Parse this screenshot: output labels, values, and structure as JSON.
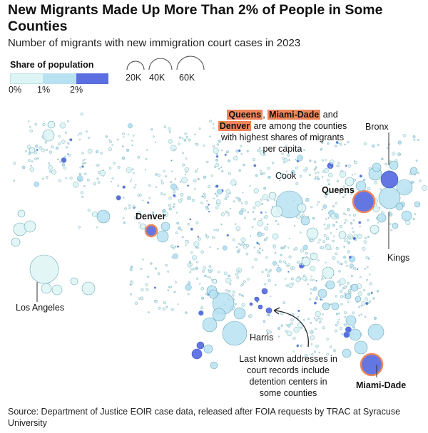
{
  "header": {
    "title": "New Migrants Made Up More Than 2% of People in Some Counties",
    "subtitle": "Number of migrants with new immigration court cases in 2023"
  },
  "legend": {
    "color_title": "Share of population",
    "color_ticks": [
      "0%",
      "1%",
      "2%"
    ],
    "size_ticks": [
      "20K",
      "40K",
      "60K"
    ],
    "colors": [
      "#def5f5",
      "#b8e2f2",
      "#7fbde8",
      "#5b6fe0"
    ]
  },
  "annotations": {
    "highlight_names": [
      "Queens",
      "Miami-Dade",
      "Denver"
    ],
    "highlight_line1_end": "and",
    "highlight_line2_end": "are among the counties",
    "highlight_line3": "with highest shares of migrants",
    "highlight_line4": "per capita",
    "detention_lines": [
      "Last known addresses in",
      "court records include",
      "detention centers in",
      "some counties"
    ]
  },
  "chart_data": {
    "type": "bubble-map",
    "title": "New Migrants Made Up More Than 2% of People in Some Counties",
    "subtitle": "Number of migrants with new immigration court cases in 2023",
    "size_legend": [
      20000,
      40000,
      60000
    ],
    "color_legend_share": [
      0,
      0.01,
      0.02
    ],
    "labeled_counties": [
      {
        "name": "Los Angeles",
        "share_band": "0-1%",
        "bold": false
      },
      {
        "name": "Denver",
        "share_band": "2%+",
        "bold": true,
        "highlighted": true
      },
      {
        "name": "Cook",
        "share_band": "1-2%",
        "bold": false
      },
      {
        "name": "Queens",
        "share_band": "2%+",
        "bold": true,
        "highlighted": true
      },
      {
        "name": "Bronx",
        "share_band": "2%+",
        "bold": false
      },
      {
        "name": "Kings",
        "share_band": "1-2%",
        "bold": false
      },
      {
        "name": "Harris",
        "share_band": "1-2%",
        "bold": false
      },
      {
        "name": "Miami-Dade",
        "share_band": "2%+",
        "bold": true,
        "highlighted": true
      }
    ]
  },
  "source": "Source: Department of Justice EOIR case data, released after FOIA requests by TRAC at Syracuse University"
}
